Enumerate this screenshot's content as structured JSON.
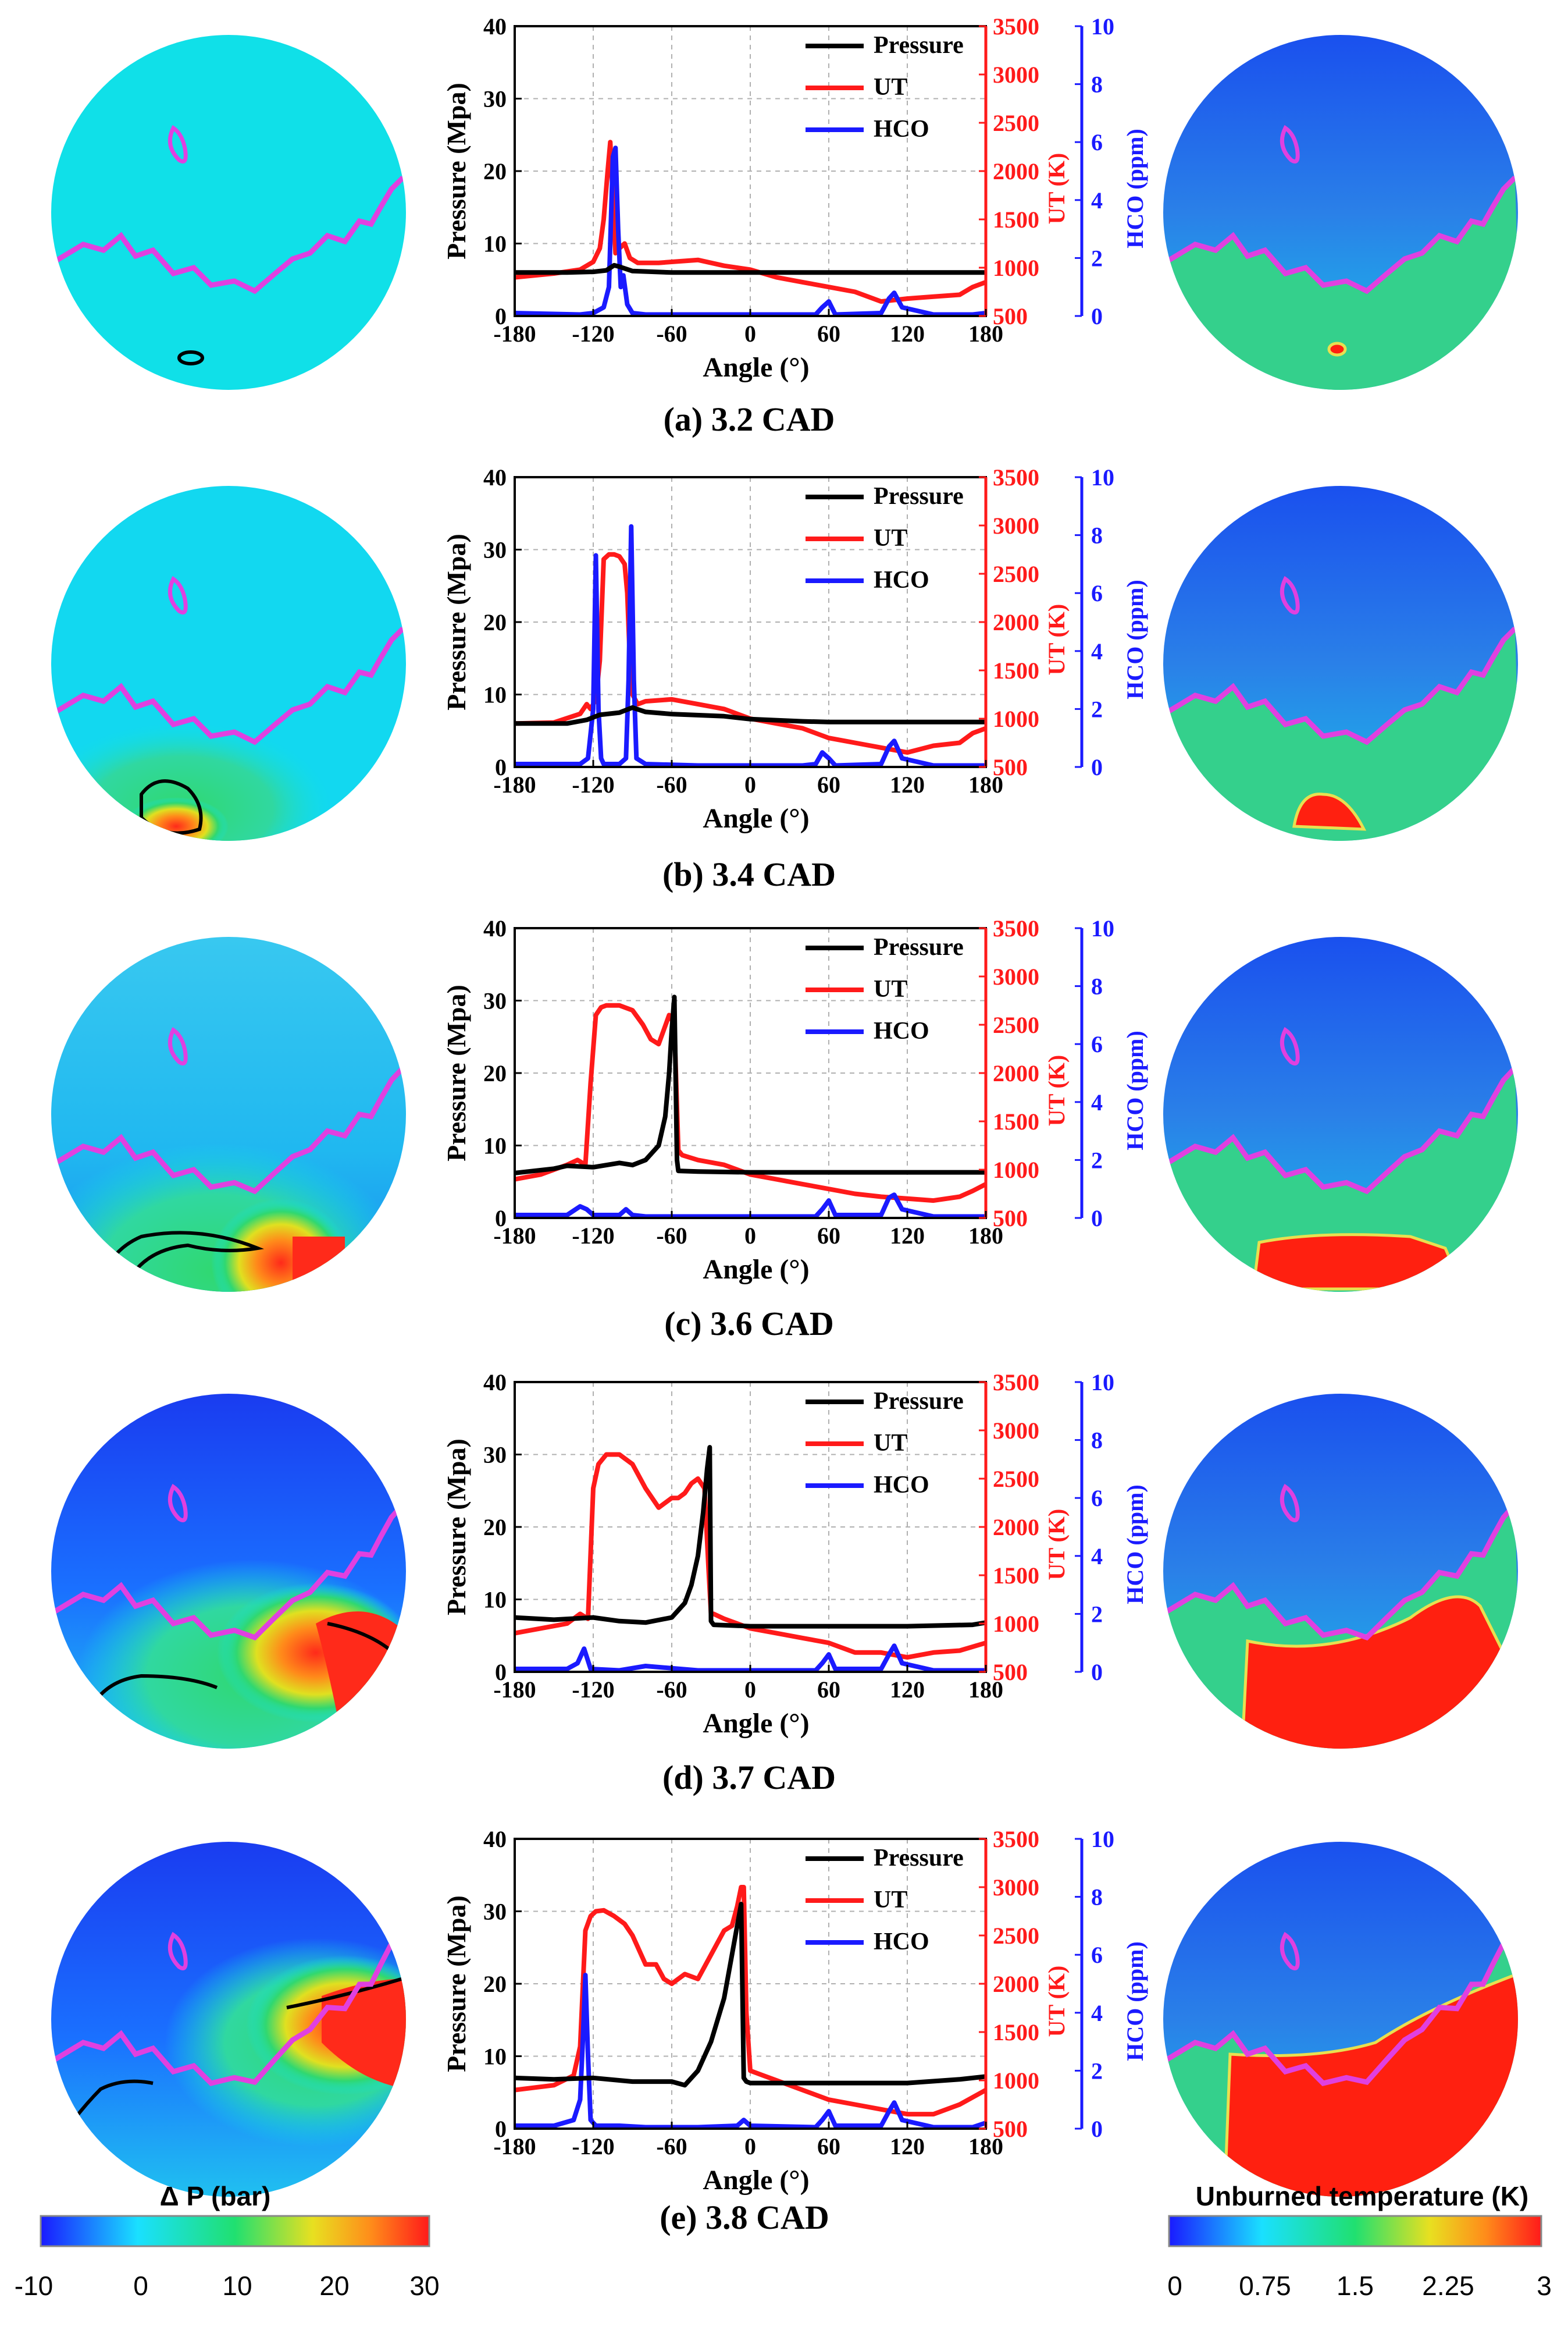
{
  "figure": {
    "captions": [
      "(a) 3.2 CAD",
      "(b) 3.4 CAD",
      "(c) 3.6 CAD",
      "(d) 3.7 CAD",
      "(e) 3.8 CAD"
    ],
    "colors": {
      "pressure": "#000000",
      "ut": "#ff1a1a",
      "hco": "#1a1aff",
      "flame_front": "#e040e0",
      "field_background": "#10e0e8"
    },
    "colorbar_left": {
      "title": "Δ P (bar)",
      "ticks": [
        "-10",
        "0",
        "10",
        "20",
        "30"
      ]
    },
    "colorbar_right": {
      "title": "Unburned temperature (K)",
      "ticks": [
        "0",
        "0.75",
        "1.5",
        "2.25",
        "3"
      ]
    }
  },
  "chart_data": [
    {
      "type": "line",
      "panel": "(a) 3.2 CAD",
      "xlabel": "Angle (°)",
      "xlim": [
        -180,
        180
      ],
      "xticks": [
        -180,
        -120,
        -60,
        0,
        60,
        120,
        180
      ],
      "ylabel": "Pressure (Mpa)",
      "ylim": [
        0,
        40
      ],
      "yticks": [
        0,
        10,
        20,
        30,
        40
      ],
      "y2label": "UT (K)",
      "y2lim": [
        500,
        3500
      ],
      "y2ticks": [
        500,
        1000,
        1500,
        2000,
        2500,
        3000,
        3500
      ],
      "y3label": "HCO (ppm)",
      "y3lim": [
        0,
        10
      ],
      "y3ticks": [
        0,
        2,
        4,
        6,
        8,
        10
      ],
      "legend": [
        "Pressure",
        "UT",
        "HCO"
      ],
      "series": [
        {
          "name": "Pressure",
          "axis": "left",
          "x": [
            -180,
            -140,
            -120,
            -110,
            -104,
            -100,
            -90,
            -60,
            0,
            60,
            120,
            180
          ],
          "y": [
            6.0,
            6.0,
            6.1,
            6.3,
            7.0,
            6.8,
            6.2,
            6.0,
            6.0,
            6.0,
            6.0,
            6.0
          ]
        },
        {
          "name": "UT",
          "axis": "right",
          "x": [
            -180,
            -150,
            -130,
            -120,
            -115,
            -112,
            -109,
            -107,
            -105,
            -103,
            -100,
            -96,
            -92,
            -86,
            -70,
            -40,
            -20,
            0,
            20,
            40,
            60,
            80,
            100,
            120,
            140,
            160,
            170,
            180
          ],
          "y": [
            900,
            940,
            980,
            1060,
            1200,
            1500,
            2000,
            2300,
            1700,
            1150,
            1200,
            1250,
            1100,
            1050,
            1050,
            1080,
            1020,
            980,
            900,
            850,
            800,
            750,
            650,
            680,
            700,
            720,
            800,
            850
          ]
        },
        {
          "name": "HCO",
          "axis": "hco",
          "x": [
            -180,
            -130,
            -120,
            -112,
            -108,
            -105,
            -103,
            -101,
            -99,
            -97,
            -94,
            -90,
            -80,
            -30,
            50,
            55,
            60,
            65,
            100,
            106,
            110,
            116,
            140,
            170,
            180
          ],
          "y": [
            0.1,
            0.05,
            0.1,
            0.3,
            1.0,
            5.5,
            5.8,
            3.0,
            1.0,
            1.4,
            0.4,
            0.1,
            0.05,
            0.05,
            0.05,
            0.3,
            0.5,
            0.05,
            0.1,
            0.6,
            0.8,
            0.3,
            0.05,
            0.05,
            0.1
          ]
        }
      ]
    },
    {
      "type": "line",
      "panel": "(b) 3.4 CAD",
      "xlabel": "Angle (°)",
      "xlim": [
        -180,
        180
      ],
      "xticks": [
        -180,
        -120,
        -60,
        0,
        60,
        120,
        180
      ],
      "ylabel": "Pressure (Mpa)",
      "ylim": [
        0,
        40
      ],
      "yticks": [
        0,
        10,
        20,
        30,
        40
      ],
      "y2label": "UT (K)",
      "y2lim": [
        500,
        3500
      ],
      "y2ticks": [
        500,
        1000,
        1500,
        2000,
        2500,
        3000,
        3500
      ],
      "y3label": "HCO (ppm)",
      "y3lim": [
        0,
        10
      ],
      "y3ticks": [
        0,
        2,
        4,
        6,
        8,
        10
      ],
      "legend": [
        "Pressure",
        "UT",
        "HCO"
      ],
      "series": [
        {
          "name": "Pressure",
          "axis": "left",
          "x": [
            -180,
            -140,
            -125,
            -115,
            -100,
            -90,
            -80,
            -60,
            -20,
            0,
            40,
            60,
            80,
            120,
            180
          ],
          "y": [
            6.0,
            6.0,
            6.5,
            7.2,
            7.5,
            8.2,
            7.6,
            7.3,
            7.0,
            6.6,
            6.3,
            6.2,
            6.2,
            6.2,
            6.2
          ]
        },
        {
          "name": "UT",
          "axis": "right",
          "x": [
            -180,
            -150,
            -130,
            -125,
            -122,
            -118,
            -115,
            -112,
            -108,
            -104,
            -100,
            -96,
            -94,
            -92,
            -90,
            -86,
            -80,
            -60,
            -40,
            -20,
            0,
            20,
            40,
            60,
            80,
            100,
            120,
            140,
            160,
            170,
            180
          ],
          "y": [
            950,
            960,
            1050,
            1150,
            1100,
            1200,
            1600,
            2650,
            2700,
            2700,
            2680,
            2600,
            2300,
            1600,
            1250,
            1150,
            1180,
            1200,
            1150,
            1100,
            1000,
            950,
            900,
            800,
            750,
            700,
            650,
            720,
            750,
            850,
            900
          ]
        },
        {
          "name": "HCO",
          "axis": "hco",
          "x": [
            -180,
            -130,
            -124,
            -120,
            -118,
            -116,
            -114,
            -112,
            -100,
            -95,
            -93,
            -91,
            -89,
            -87,
            -80,
            -40,
            40,
            50,
            55,
            60,
            65,
            100,
            106,
            110,
            116,
            140,
            180
          ],
          "y": [
            0.1,
            0.1,
            0.3,
            2.0,
            7.3,
            2.0,
            0.3,
            0.1,
            0.1,
            0.3,
            3.0,
            8.3,
            3.0,
            0.3,
            0.1,
            0.05,
            0.05,
            0.1,
            0.5,
            0.3,
            0.05,
            0.1,
            0.7,
            0.9,
            0.3,
            0.05,
            0.05
          ]
        }
      ]
    },
    {
      "type": "line",
      "panel": "(c) 3.6 CAD",
      "xlabel": "Angle (°)",
      "xlim": [
        -180,
        180
      ],
      "xticks": [
        -180,
        -120,
        -60,
        0,
        60,
        120,
        180
      ],
      "ylabel": "Pressure (Mpa)",
      "ylim": [
        0,
        40
      ],
      "yticks": [
        0,
        10,
        20,
        30,
        40
      ],
      "y2label": "UT (K)",
      "y2lim": [
        500,
        3500
      ],
      "y2ticks": [
        500,
        1000,
        1500,
        2000,
        2500,
        3000,
        3500
      ],
      "y3label": "HCO (ppm)",
      "y3lim": [
        0,
        10
      ],
      "y3ticks": [
        0,
        2,
        4,
        6,
        8,
        10
      ],
      "legend": [
        "Pressure",
        "UT",
        "HCO"
      ],
      "series": [
        {
          "name": "Pressure",
          "axis": "left",
          "x": [
            -180,
            -150,
            -140,
            -120,
            -100,
            -90,
            -80,
            -70,
            -65,
            -62,
            -60,
            -58,
            -56,
            -55,
            -40,
            0,
            60,
            120,
            180
          ],
          "y": [
            6.2,
            6.8,
            7.2,
            7.0,
            7.6,
            7.3,
            8.0,
            10.0,
            14.0,
            20.0,
            26.0,
            30.5,
            8.0,
            6.5,
            6.4,
            6.3,
            6.3,
            6.3,
            6.3
          ]
        },
        {
          "name": "UT",
          "axis": "right",
          "x": [
            -180,
            -160,
            -140,
            -132,
            -126,
            -122,
            -118,
            -114,
            -110,
            -100,
            -90,
            -82,
            -76,
            -70,
            -66,
            -62,
            -58,
            -55,
            -52,
            -40,
            -20,
            0,
            20,
            40,
            60,
            80,
            100,
            120,
            140,
            160,
            170,
            180
          ],
          "y": [
            900,
            950,
            1050,
            1100,
            1050,
            1900,
            2600,
            2680,
            2700,
            2700,
            2650,
            2500,
            2350,
            2300,
            2450,
            2600,
            2500,
            1200,
            1150,
            1100,
            1050,
            950,
            900,
            850,
            800,
            750,
            720,
            700,
            680,
            720,
            780,
            850
          ]
        },
        {
          "name": "HCO",
          "axis": "hco",
          "x": [
            -180,
            -140,
            -130,
            -125,
            -120,
            -100,
            -95,
            -90,
            -80,
            -40,
            50,
            55,
            60,
            65,
            100,
            106,
            110,
            116,
            140,
            180
          ],
          "y": [
            0.1,
            0.1,
            0.4,
            0.3,
            0.1,
            0.1,
            0.3,
            0.1,
            0.05,
            0.05,
            0.05,
            0.3,
            0.6,
            0.1,
            0.1,
            0.7,
            0.8,
            0.3,
            0.05,
            0.05
          ]
        }
      ]
    },
    {
      "type": "line",
      "panel": "(d) 3.7 CAD",
      "xlabel": "Angle (°)",
      "xlim": [
        -180,
        180
      ],
      "xticks": [
        -180,
        -120,
        -60,
        0,
        60,
        120,
        180
      ],
      "ylabel": "Pressure (Mpa)",
      "ylim": [
        0,
        40
      ],
      "yticks": [
        0,
        10,
        20,
        30,
        40
      ],
      "y2label": "UT (K)",
      "y2lim": [
        500,
        3500
      ],
      "y2ticks": [
        500,
        1000,
        1500,
        2000,
        2500,
        3000,
        3500
      ],
      "y3label": "HCO (ppm)",
      "y3lim": [
        0,
        10
      ],
      "y3ticks": [
        0,
        2,
        4,
        6,
        8,
        10
      ],
      "legend": [
        "Pressure",
        "UT",
        "HCO"
      ],
      "series": [
        {
          "name": "Pressure",
          "axis": "left",
          "x": [
            -180,
            -150,
            -120,
            -100,
            -80,
            -60,
            -50,
            -45,
            -40,
            -36,
            -33,
            -31,
            -30,
            -28,
            0,
            60,
            120,
            170,
            180
          ],
          "y": [
            7.5,
            7.2,
            7.5,
            7.0,
            6.8,
            7.5,
            9.5,
            12.0,
            16.0,
            22.0,
            28.0,
            31.0,
            7.0,
            6.5,
            6.3,
            6.3,
            6.3,
            6.5,
            6.8
          ]
        },
        {
          "name": "UT",
          "axis": "right",
          "x": [
            -180,
            -160,
            -140,
            -130,
            -124,
            -120,
            -116,
            -110,
            -100,
            -90,
            -80,
            -70,
            -60,
            -55,
            -50,
            -45,
            -40,
            -35,
            -32,
            -30,
            -28,
            -20,
            0,
            20,
            40,
            60,
            80,
            100,
            120,
            140,
            160,
            180
          ],
          "y": [
            900,
            950,
            1000,
            1100,
            1050,
            2400,
            2650,
            2750,
            2750,
            2650,
            2400,
            2200,
            2300,
            2300,
            2350,
            2450,
            2500,
            2400,
            1600,
            1100,
            1100,
            1050,
            950,
            900,
            850,
            800,
            700,
            700,
            650,
            700,
            720,
            800
          ]
        },
        {
          "name": "HCO",
          "axis": "hco",
          "x": [
            -180,
            -140,
            -132,
            -127,
            -122,
            -100,
            -80,
            -40,
            50,
            55,
            60,
            65,
            100,
            106,
            110,
            116,
            140,
            180
          ],
          "y": [
            0.1,
            0.1,
            0.3,
            0.8,
            0.1,
            0.05,
            0.2,
            0.05,
            0.05,
            0.3,
            0.6,
            0.1,
            0.1,
            0.6,
            0.9,
            0.3,
            0.05,
            0.05
          ]
        }
      ]
    },
    {
      "type": "line",
      "panel": "(e) 3.8 CAD",
      "xlabel": "Angle (°)",
      "xlim": [
        -180,
        180
      ],
      "xticks": [
        -180,
        -120,
        -60,
        0,
        60,
        120,
        180
      ],
      "ylabel": "Pressure (Mpa)",
      "ylim": [
        0,
        40
      ],
      "yticks": [
        0,
        10,
        20,
        30,
        40
      ],
      "y2label": "UT (K)",
      "y2lim": [
        500,
        3500
      ],
      "y2ticks": [
        500,
        1000,
        1500,
        2000,
        2500,
        3000,
        3500
      ],
      "y3label": "HCO (ppm)",
      "y3lim": [
        0,
        10
      ],
      "y3ticks": [
        0,
        2,
        4,
        6,
        8,
        10
      ],
      "legend": [
        "Pressure",
        "UT",
        "HCO"
      ],
      "series": [
        {
          "name": "Pressure",
          "axis": "left",
          "x": [
            -180,
            -150,
            -120,
            -90,
            -60,
            -50,
            -40,
            -30,
            -20,
            -15,
            -10,
            -7,
            -5,
            -3,
            0,
            60,
            120,
            160,
            180
          ],
          "y": [
            7.0,
            6.8,
            7.0,
            6.5,
            6.5,
            6.0,
            8.0,
            12.0,
            18.0,
            23.0,
            28.0,
            31.0,
            7.0,
            6.5,
            6.3,
            6.3,
            6.3,
            6.8,
            7.2
          ]
        },
        {
          "name": "UT",
          "axis": "right",
          "x": [
            -180,
            -150,
            -135,
            -130,
            -126,
            -122,
            -118,
            -112,
            -104,
            -96,
            -90,
            -80,
            -72,
            -66,
            -60,
            -50,
            -40,
            -30,
            -20,
            -14,
            -10,
            -7,
            -5,
            -3,
            0,
            10,
            20,
            40,
            60,
            80,
            100,
            120,
            140,
            160,
            180
          ],
          "y": [
            900,
            950,
            1050,
            1350,
            2550,
            2700,
            2750,
            2760,
            2700,
            2620,
            2500,
            2200,
            2200,
            2050,
            2000,
            2100,
            2050,
            2300,
            2550,
            2600,
            2800,
            3000,
            3000,
            1700,
            1100,
            1050,
            1000,
            900,
            800,
            750,
            700,
            650,
            650,
            750,
            900
          ]
        },
        {
          "name": "HCO",
          "axis": "hco",
          "x": [
            -180,
            -150,
            -135,
            -130,
            -128,
            -126,
            -124,
            -122,
            -118,
            -100,
            -80,
            -40,
            -10,
            -5,
            0,
            50,
            55,
            60,
            65,
            100,
            106,
            110,
            116,
            140,
            170,
            180
          ],
          "y": [
            0.1,
            0.1,
            0.3,
            1.0,
            3.0,
            5.3,
            2.5,
            0.3,
            0.1,
            0.1,
            0.05,
            0.05,
            0.1,
            0.3,
            0.1,
            0.05,
            0.3,
            0.6,
            0.1,
            0.1,
            0.6,
            0.9,
            0.3,
            0.05,
            0.05,
            0.2
          ]
        }
      ]
    }
  ]
}
